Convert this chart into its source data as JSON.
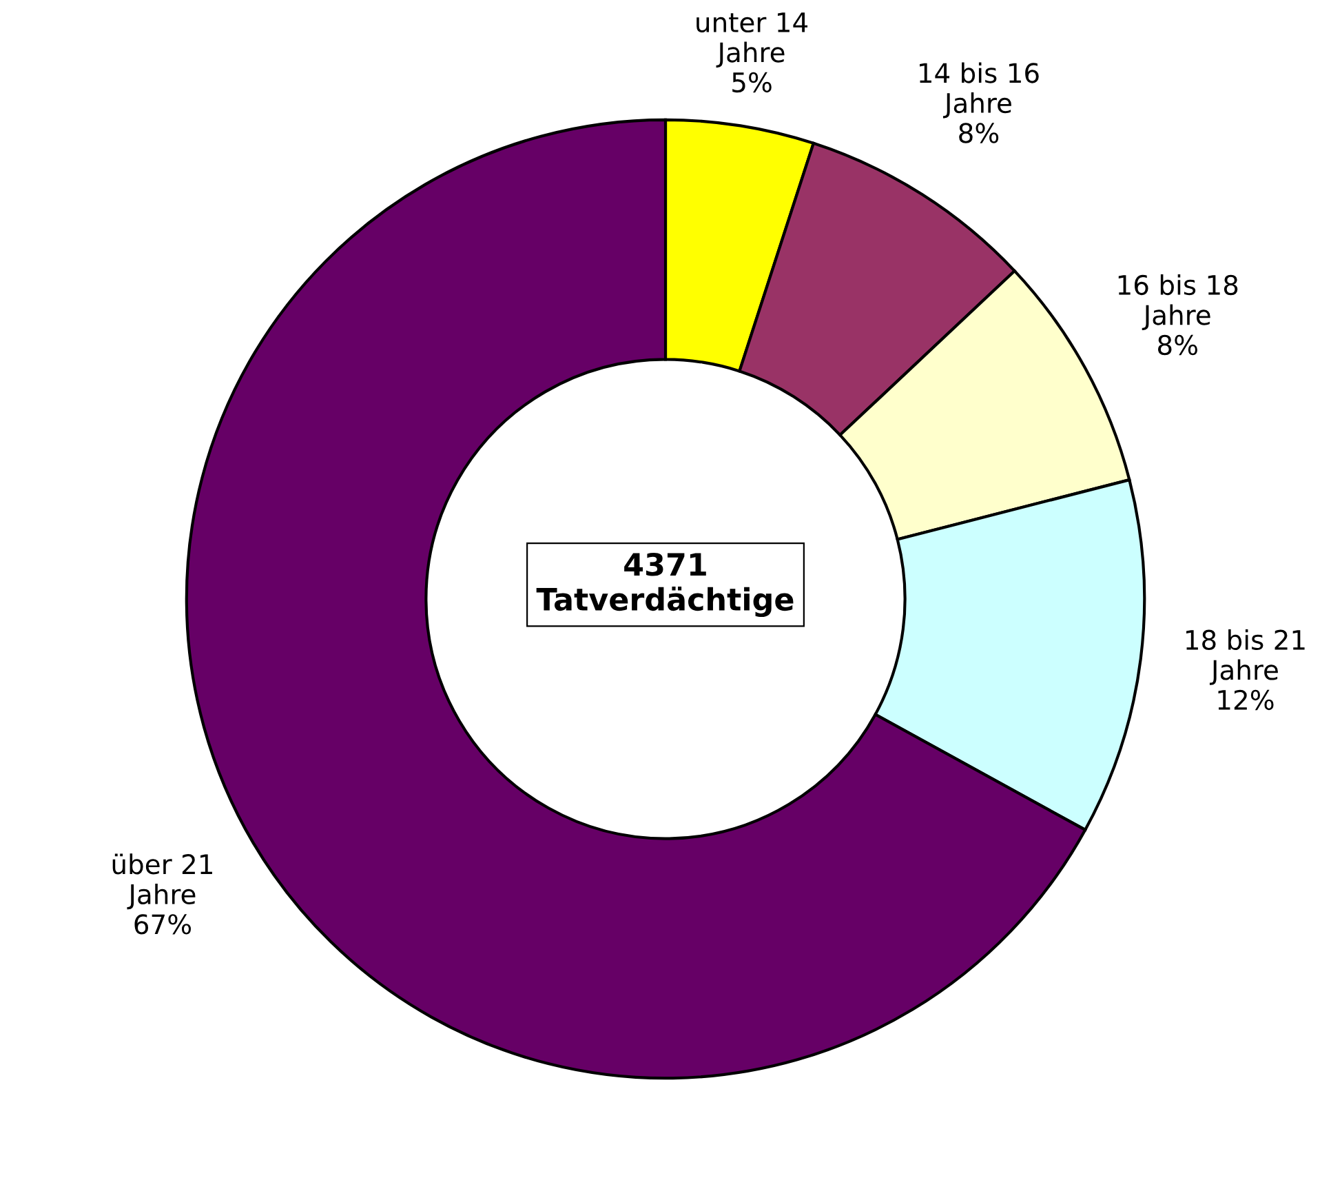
{
  "chart_data": {
    "type": "donut",
    "categories": [
      "unter 14 Jahre",
      "14 bis 16 Jahre",
      "16 bis 18 Jahre",
      "18 bis 21 Jahre",
      "über 21 Jahre"
    ],
    "values": [
      5,
      8,
      8,
      12,
      67
    ],
    "colors": [
      "#ffff00",
      "#993366",
      "#ffffcc",
      "#ccffff",
      "#660066"
    ],
    "value_labels": [
      "5%",
      "8%",
      "8%",
      "12%",
      "67%"
    ],
    "annotations": [
      "4371\nTatverdächtige"
    ]
  }
}
